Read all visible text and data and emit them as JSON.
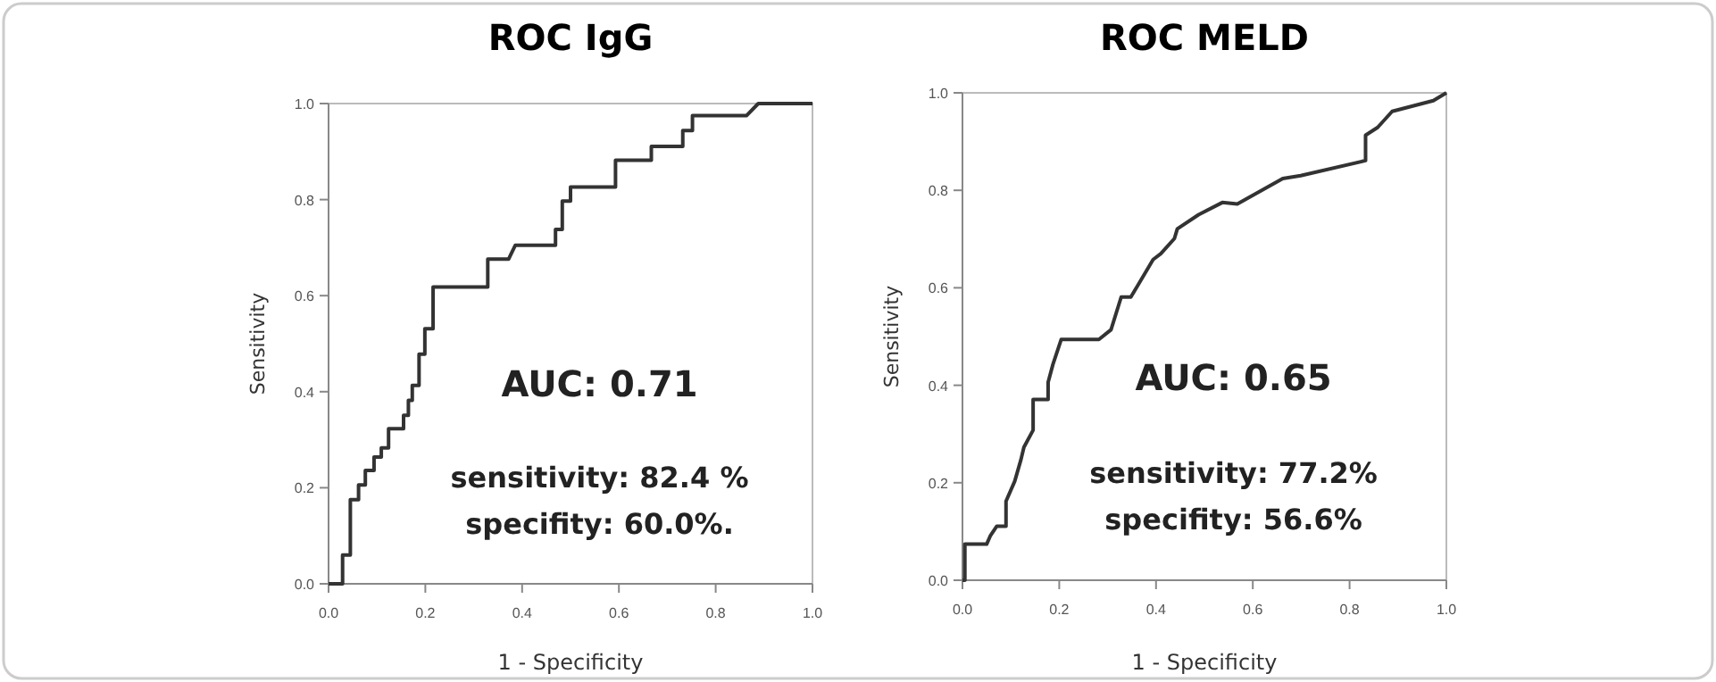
{
  "chart_data": [
    {
      "type": "line",
      "title": "ROC IgG",
      "xlabel": "1 - Specificity",
      "ylabel": "Sensitivity",
      "annotations": [
        "AUC: 0.71",
        "sensitivity: 82.4 %",
        "specifity: 60.0%."
      ],
      "xlim": [
        0,
        1
      ],
      "ylim": [
        0,
        1
      ],
      "xticks": [
        {
          "value": 0,
          "label": "0.0"
        },
        {
          "value": 0.2,
          "label": "0.2"
        },
        {
          "value": 0.4,
          "label": "0.4"
        },
        {
          "value": 0.6,
          "label": "0.6"
        },
        {
          "value": 0.8,
          "label": "0.8"
        },
        {
          "value": 1,
          "label": "1.0"
        }
      ],
      "yticks": [
        {
          "value": 0,
          "label": "0.0"
        },
        {
          "value": 0.2,
          "label": "0.2"
        },
        {
          "value": 0.4,
          "label": "0.4"
        },
        {
          "value": 0.6,
          "label": "0.6"
        },
        {
          "value": 0.8,
          "label": "0.8"
        },
        {
          "value": 1,
          "label": "1.0"
        }
      ],
      "grid": false,
      "series": [
        {
          "color": "#333333",
          "x": [
            0,
            0.029,
            0.029,
            0.045,
            0.045,
            0.062,
            0.062,
            0.076,
            0.076,
            0.094,
            0.094,
            0.109,
            0.109,
            0.124,
            0.124,
            0.155,
            0.155,
            0.165,
            0.165,
            0.173,
            0.173,
            0.187,
            0.187,
            0.199,
            0.199,
            0.216,
            0.216,
            0.329,
            0.329,
            0.372,
            0.386,
            0.469,
            0.469,
            0.483,
            0.483,
            0.5,
            0.5,
            0.593,
            0.593,
            0.667,
            0.667,
            0.732,
            0.732,
            0.752,
            0.752,
            0.864,
            0.888,
            1
          ],
          "values": [
            0,
            0,
            0.06,
            0.06,
            0.175,
            0.175,
            0.206,
            0.206,
            0.236,
            0.236,
            0.264,
            0.264,
            0.283,
            0.283,
            0.323,
            0.323,
            0.351,
            0.351,
            0.382,
            0.382,
            0.413,
            0.413,
            0.478,
            0.478,
            0.531,
            0.531,
            0.618,
            0.618,
            0.676,
            0.676,
            0.705,
            0.705,
            0.738,
            0.738,
            0.797,
            0.797,
            0.826,
            0.826,
            0.882,
            0.882,
            0.911,
            0.911,
            0.944,
            0.944,
            0.975,
            0.975,
            1,
            1
          ]
        }
      ]
    },
    {
      "type": "line",
      "title": "ROC MELD",
      "xlabel": "1 - Specificity",
      "ylabel": "Sensitivity",
      "annotations": [
        "AUC: 0.65",
        "sensitivity: 77.2%",
        "specifity: 56.6%"
      ],
      "xlim": [
        0,
        1
      ],
      "ylim": [
        0,
        1
      ],
      "xticks": [
        {
          "value": 0,
          "label": "0.0"
        },
        {
          "value": 0.2,
          "label": "0.2"
        },
        {
          "value": 0.4,
          "label": "0.4"
        },
        {
          "value": 0.6,
          "label": "0.6"
        },
        {
          "value": 0.8,
          "label": "0.8"
        },
        {
          "value": 1,
          "label": "1.0"
        }
      ],
      "yticks": [
        {
          "value": 0,
          "label": "0.0"
        },
        {
          "value": 0.2,
          "label": "0.2"
        },
        {
          "value": 0.4,
          "label": "0.4"
        },
        {
          "value": 0.6,
          "label": "0.6"
        },
        {
          "value": 0.8,
          "label": "0.8"
        },
        {
          "value": 1,
          "label": "1.0"
        }
      ],
      "grid": false,
      "series": [
        {
          "color": "#333333",
          "x": [
            0,
            0.005,
            0.005,
            0.05,
            0.058,
            0.071,
            0.09,
            0.09,
            0.108,
            0.121,
            0.127,
            0.146,
            0.146,
            0.177,
            0.177,
            0.187,
            0.204,
            0.282,
            0.307,
            0.328,
            0.348,
            0.394,
            0.41,
            0.438,
            0.444,
            0.488,
            0.537,
            0.568,
            0.662,
            0.699,
            0.833,
            0.833,
            0.858,
            0.888,
            0.973,
            1
          ],
          "values": [
            0,
            0,
            0.074,
            0.074,
            0.092,
            0.111,
            0.111,
            0.162,
            0.203,
            0.248,
            0.273,
            0.308,
            0.371,
            0.371,
            0.406,
            0.443,
            0.494,
            0.494,
            0.514,
            0.581,
            0.581,
            0.658,
            0.67,
            0.701,
            0.721,
            0.75,
            0.775,
            0.772,
            0.824,
            0.83,
            0.861,
            0.913,
            0.929,
            0.962,
            0.984,
            1
          ]
        }
      ]
    }
  ]
}
